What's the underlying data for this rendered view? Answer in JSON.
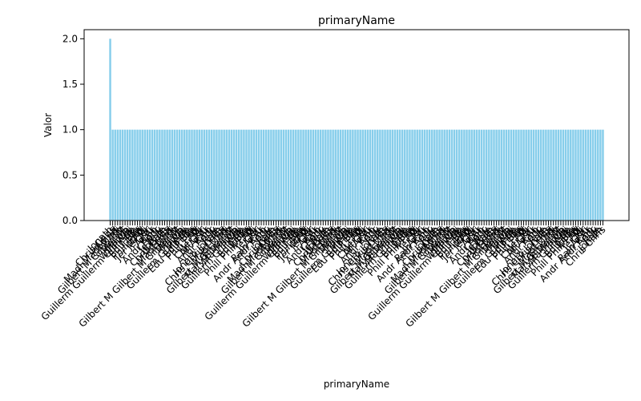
{
  "chart_data": {
    "type": "bar",
    "title": "primaryName",
    "xlabel": "primaryName",
    "ylabel": "Valor",
    "ylim": [
      0,
      2.1
    ],
    "yticks": [
      0.0,
      0.5,
      1.0,
      1.5,
      2.0
    ],
    "ytick_labels": [
      "0.0",
      "0.5",
      "1.0",
      "1.5",
      "2.0"
    ],
    "grid": false,
    "legend": "none",
    "bar_color": "#87CEEB",
    "bar_count": 200,
    "first_value": 2,
    "other_value": 1,
    "legible_category_labels": [
      "Jonath",
      "Chris",
      "Ad",
      "Madi",
      "Th",
      "Gilbert M",
      "Mary E",
      "Ma",
      "Willi",
      "Guillerm",
      "Ma",
      "Edu",
      "Wi",
      "Phill",
      "Mi",
      "Jer",
      "Chri",
      "Ar",
      "Rain",
      "Andr",
      "Jy",
      "Je"
    ]
  }
}
